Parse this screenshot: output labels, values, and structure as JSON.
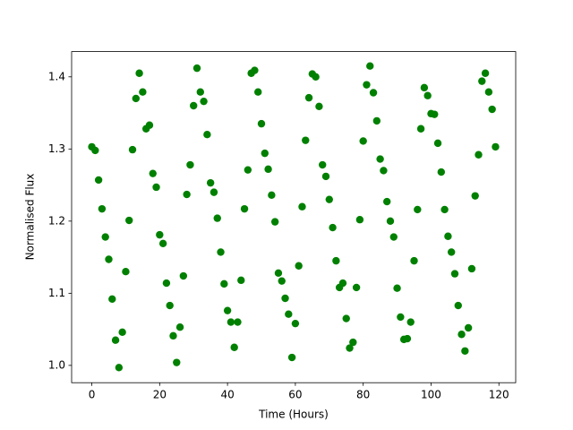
{
  "chart_data": {
    "type": "scatter",
    "xlabel": "Time (Hours)",
    "ylabel": "Normalised Flux",
    "x": [
      0,
      1,
      2,
      3,
      4,
      5,
      6,
      7,
      8,
      9,
      10,
      11,
      12,
      13,
      14,
      15,
      16,
      17,
      18,
      19,
      20,
      21,
      22,
      23,
      24,
      25,
      26,
      27,
      28,
      29,
      30,
      31,
      32,
      33,
      34,
      35,
      36,
      37,
      38,
      39,
      40,
      41,
      42,
      43,
      44,
      45,
      46,
      47,
      48,
      49,
      50,
      51,
      52,
      53,
      54,
      55,
      56,
      57,
      58,
      59,
      60,
      61,
      62,
      63,
      64,
      65,
      66,
      67,
      68,
      69,
      70,
      71,
      72,
      73,
      74,
      75,
      76,
      77,
      78,
      79,
      80,
      81,
      82,
      83,
      84,
      85,
      86,
      87,
      88,
      89,
      90,
      91,
      92,
      93,
      94,
      95,
      96,
      97,
      98,
      99,
      100,
      101,
      102,
      103,
      104,
      105,
      106,
      107,
      108,
      109,
      110,
      111,
      112,
      113,
      114,
      115,
      116,
      117,
      118,
      119
    ],
    "values": [
      1.303,
      1.298,
      1.257,
      1.217,
      1.178,
      1.147,
      1.092,
      1.035,
      0.997,
      1.046,
      1.13,
      1.201,
      1.299,
      1.37,
      1.405,
      1.379,
      1.328,
      1.333,
      1.266,
      1.247,
      1.181,
      1.169,
      1.114,
      1.083,
      1.041,
      1.004,
      1.053,
      1.124,
      1.237,
      1.278,
      1.36,
      1.412,
      1.379,
      1.366,
      1.32,
      1.253,
      1.24,
      1.204,
      1.157,
      1.113,
      1.076,
      1.06,
      1.025,
      1.06,
      1.118,
      1.217,
      1.271,
      1.405,
      1.409,
      1.379,
      1.335,
      1.294,
      1.272,
      1.236,
      1.199,
      1.128,
      1.117,
      1.093,
      1.071,
      1.011,
      1.058,
      1.138,
      1.22,
      1.312,
      1.371,
      1.404,
      1.4,
      1.359,
      1.278,
      1.262,
      1.23,
      1.191,
      1.145,
      1.108,
      1.114,
      1.065,
      1.024,
      1.032,
      1.108,
      1.202,
      1.311,
      1.389,
      1.415,
      1.378,
      1.339,
      1.286,
      1.27,
      1.227,
      1.2,
      1.178,
      1.107,
      1.067,
      1.036,
      1.037,
      1.06,
      1.145,
      1.216,
      1.328,
      1.385,
      1.374,
      1.349,
      1.348,
      1.308,
      1.268,
      1.216,
      1.179,
      1.157,
      1.127,
      1.083,
      1.043,
      1.02,
      1.052,
      1.134,
      1.235,
      1.292,
      1.394,
      1.405,
      1.379,
      1.355,
      1.303
    ],
    "color": "#008000",
    "xlim": [
      -5.95,
      124.95
    ],
    "xticks": [
      0,
      20,
      40,
      60,
      80,
      100,
      120
    ],
    "ylim": [
      0.976,
      1.435
    ],
    "yticks": [
      {
        "value": 1,
        "label": "1.0"
      },
      1.1,
      1.2,
      1.3,
      1.4
    ],
    "grid": false
  }
}
